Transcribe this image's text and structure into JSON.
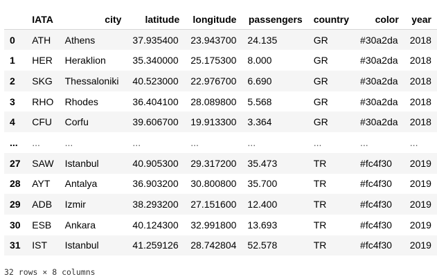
{
  "table": {
    "columns": [
      "",
      "IATA",
      "city",
      "latitude",
      "longitude",
      "passengers",
      "country",
      "color",
      "year"
    ],
    "rows": [
      {
        "index": "0",
        "iata": "ATH",
        "city": "Athens",
        "latitude": "37.935400",
        "longitude": "23.943700",
        "passengers": "24.135",
        "country": "GR",
        "color": "#30a2da",
        "year": "2018"
      },
      {
        "index": "1",
        "iata": "HER",
        "city": "Heraklion",
        "latitude": "35.340000",
        "longitude": "25.175300",
        "passengers": "8.000",
        "country": "GR",
        "color": "#30a2da",
        "year": "2018"
      },
      {
        "index": "2",
        "iata": "SKG",
        "city": "Thessaloniki",
        "latitude": "40.523000",
        "longitude": "22.976700",
        "passengers": "6.690",
        "country": "GR",
        "color": "#30a2da",
        "year": "2018"
      },
      {
        "index": "3",
        "iata": "RHO",
        "city": "Rhodes",
        "latitude": "36.404100",
        "longitude": "28.089800",
        "passengers": "5.568",
        "country": "GR",
        "color": "#30a2da",
        "year": "2018"
      },
      {
        "index": "4",
        "iata": "CFU",
        "city": "Corfu",
        "latitude": "39.606700",
        "longitude": "19.913300",
        "passengers": "3.364",
        "country": "GR",
        "color": "#30a2da",
        "year": "2018"
      },
      {
        "index": "...",
        "iata": "...",
        "city": "...",
        "latitude": "...",
        "longitude": "...",
        "passengers": "...",
        "country": "...",
        "color": "...",
        "year": "..."
      },
      {
        "index": "27",
        "iata": "SAW",
        "city": "Istanbul",
        "latitude": "40.905300",
        "longitude": "29.317200",
        "passengers": "35.473",
        "country": "TR",
        "color": "#fc4f30",
        "year": "2019"
      },
      {
        "index": "28",
        "iata": "AYT",
        "city": "Antalya",
        "latitude": "36.903200",
        "longitude": "30.800800",
        "passengers": "35.700",
        "country": "TR",
        "color": "#fc4f30",
        "year": "2019"
      },
      {
        "index": "29",
        "iata": "ADB",
        "city": "Izmir",
        "latitude": "38.293200",
        "longitude": "27.151600",
        "passengers": "12.400",
        "country": "TR",
        "color": "#fc4f30",
        "year": "2019"
      },
      {
        "index": "30",
        "iata": "ESB",
        "city": "Ankara",
        "latitude": "40.124300",
        "longitude": "32.991800",
        "passengers": "13.693",
        "country": "TR",
        "color": "#fc4f30",
        "year": "2019"
      },
      {
        "index": "31",
        "iata": "IST",
        "city": "Istanbul",
        "latitude": "41.259126",
        "longitude": "28.742804",
        "passengers": "52.578",
        "country": "TR",
        "color": "#fc4f30",
        "year": "2019"
      }
    ]
  },
  "footer": {
    "shape": "32 rows × 8 columns"
  }
}
